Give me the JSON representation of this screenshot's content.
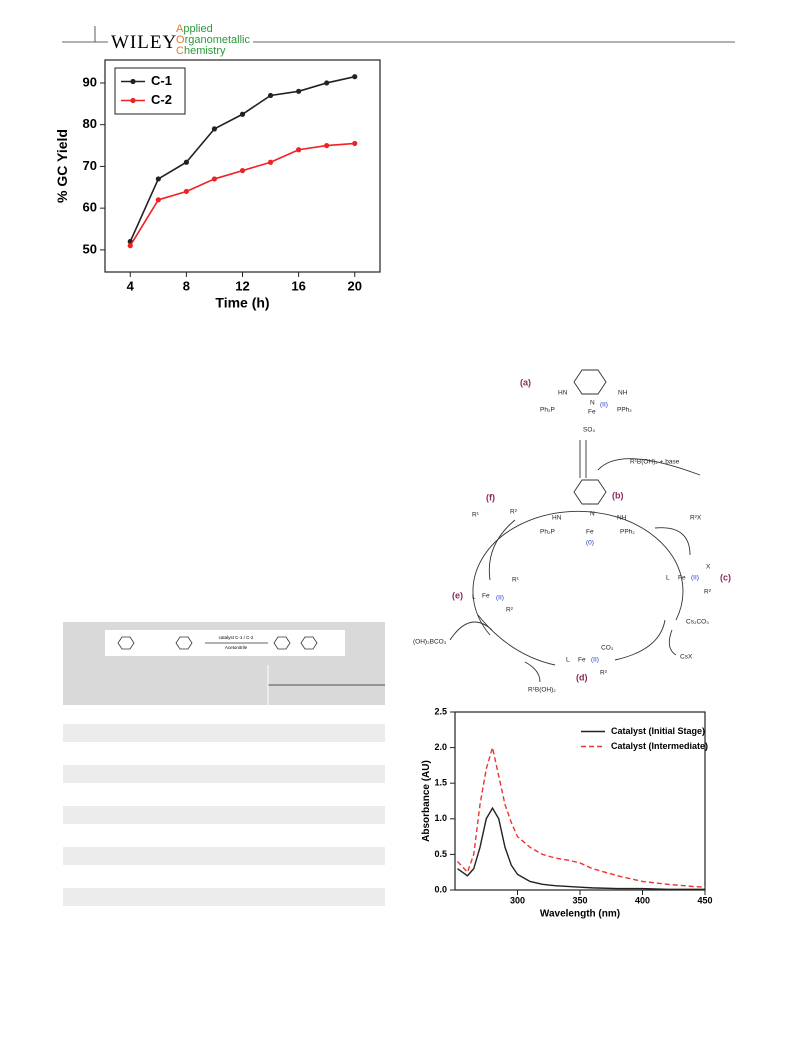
{
  "header": {
    "brand": "WILEY",
    "journal": [
      "Applied",
      "Organometallic",
      "Chemistry"
    ]
  },
  "chart_data": [
    {
      "type": "line",
      "xlabel": "Time (h)",
      "ylabel": "% GC Yield",
      "x": [
        4,
        6,
        8,
        10,
        12,
        14,
        16,
        18,
        20
      ],
      "series": [
        {
          "name": "C-1",
          "color": "#222222",
          "linestyle": "solid",
          "values": [
            52,
            67,
            71,
            79,
            82.5,
            87,
            88,
            90,
            91.5
          ]
        },
        {
          "name": "C-2",
          "color": "#ee2222",
          "linestyle": "solid",
          "values": [
            51,
            62,
            64,
            67,
            69,
            71,
            74,
            75,
            75.5
          ]
        }
      ],
      "xlim": [
        2.2,
        21.8
      ],
      "xticks": [
        4,
        8,
        12,
        16,
        20
      ],
      "ylim": [
        44.7,
        95.5
      ],
      "yticks": [
        50,
        60,
        70,
        80,
        90
      ],
      "markers": true,
      "legend": "upper left"
    },
    {
      "type": "line",
      "xlabel": "Wavelength (nm)",
      "ylabel": "Absorbance (AU)",
      "x": [
        252,
        260,
        265,
        270,
        275,
        280,
        285,
        290,
        295,
        300,
        310,
        320,
        330,
        340,
        350,
        360,
        380,
        400,
        420,
        440,
        450
      ],
      "series": [
        {
          "name": "Catalyst (Initial Stage)",
          "color": "#222222",
          "linestyle": "solid",
          "values": [
            0.3,
            0.2,
            0.3,
            0.6,
            1.0,
            1.15,
            1.0,
            0.6,
            0.35,
            0.22,
            0.12,
            0.08,
            0.06,
            0.05,
            0.04,
            0.03,
            0.02,
            0.02,
            0.01,
            0.01,
            0.01
          ]
        },
        {
          "name": "Catalyst (Intermediate)",
          "color": "#ee3333",
          "linestyle": "dashed",
          "values": [
            0.4,
            0.25,
            0.5,
            1.2,
            1.7,
            2.0,
            1.6,
            1.2,
            0.95,
            0.75,
            0.6,
            0.5,
            0.45,
            0.42,
            0.38,
            0.3,
            0.2,
            0.12,
            0.08,
            0.05,
            0.04
          ]
        }
      ],
      "xlim": [
        250,
        450
      ],
      "xticks": [
        300,
        350,
        400,
        450
      ],
      "ylim": [
        0,
        2.5
      ],
      "yticks": [
        {
          "value": 0,
          "label": "0.0"
        },
        0.5,
        {
          "value": 1,
          "label": "1.0"
        },
        1.5,
        {
          "value": 2,
          "label": "2.0"
        },
        2.5
      ],
      "markers": false,
      "legend": "upper right"
    }
  ],
  "scheme": {
    "texts": [
      "(a)",
      "HN",
      "NH",
      "N",
      "Ph₂P",
      "Fe",
      "(II)",
      "PPh₂",
      "SO₄",
      "R¹B(OH)₂ + base",
      "(b)",
      "HN",
      "NH",
      "N",
      "Ph₂P",
      "Fe",
      "PPh₂",
      "(0)",
      "(f)",
      "R¹",
      "R²",
      "R²X",
      "X",
      "L",
      "Fe",
      "(II)",
      "R²",
      "(c)",
      "R¹",
      "L",
      "Fe",
      "(II)",
      "R²",
      "(e)",
      "Cs₂CO₃",
      "CsX",
      "(OH)₂BCO₃",
      "CO₃",
      "L",
      "Fe",
      "(II)",
      "R²",
      "(d)",
      "R¹B(OH)₂"
    ]
  },
  "table": {
    "reaction": [
      "catalyst C-1 / C-2",
      "Acetonitrile"
    ]
  }
}
